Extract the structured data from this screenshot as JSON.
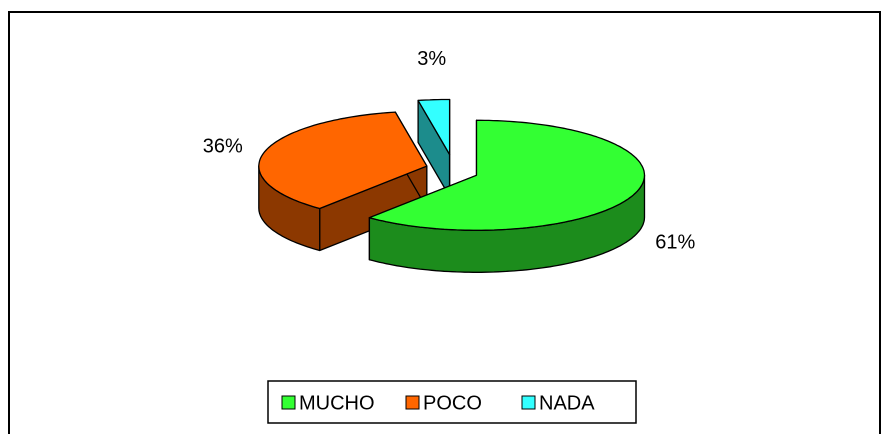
{
  "chart_data": {
    "type": "pie3d",
    "categories": [
      "MUCHO",
      "POCO",
      "NADA"
    ],
    "values": [
      61,
      36,
      3
    ],
    "value_labels": [
      "61%",
      "36%",
      "3%"
    ],
    "colors": [
      "#33ff33",
      "#ff6600",
      "#33ffff"
    ],
    "legend": "bottom"
  }
}
